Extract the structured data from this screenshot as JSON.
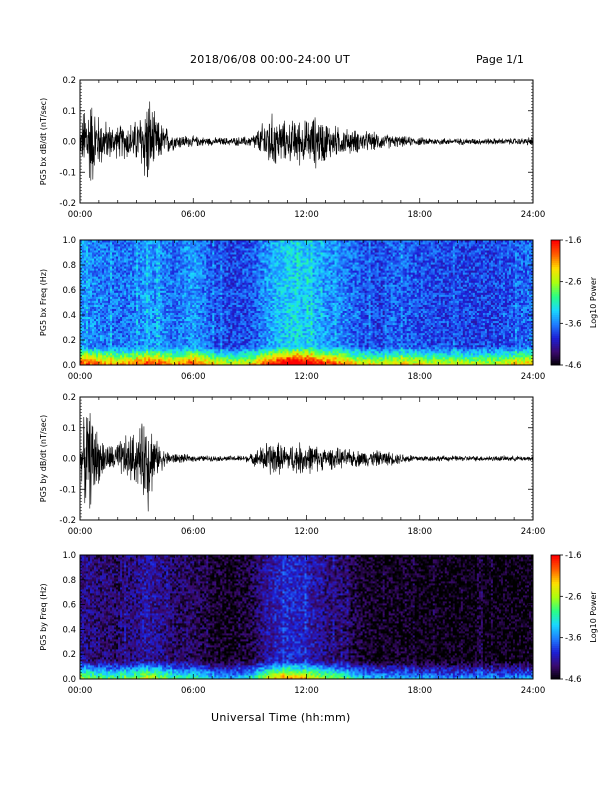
{
  "header": {
    "title": "2018/06/08  00:00-24:00 UT",
    "page": "Page 1/1"
  },
  "footer": {
    "xlabel": "Universal Time (hh:mm)"
  },
  "colors": {
    "trace": "#000000",
    "colormap": [
      "#000000",
      "#3a0a6e",
      "#1d1fd6",
      "#1f7fff",
      "#19d8ff",
      "#2bff84",
      "#aaff10",
      "#ffe000",
      "#ff6000",
      "#ff0000"
    ]
  },
  "chart_data": [
    {
      "type": "line",
      "ylabel": "PG5 bx dB/dt (nT/sec)",
      "xlim": [
        0,
        24
      ],
      "ylim": [
        -0.2,
        0.2
      ],
      "xticks": [
        "00:00",
        "06:00",
        "12:00",
        "18:00",
        "24:00"
      ],
      "yticks": [
        "-0.2",
        "-0.1",
        "0.0",
        "0.1",
        "0.2"
      ],
      "ytick_values": [
        -0.2,
        -0.1,
        0.0,
        0.1,
        0.2
      ],
      "envelope": {
        "hours": [
          0,
          0.3,
          0.6,
          1.0,
          1.5,
          2.0,
          2.5,
          3.0,
          3.3,
          3.6,
          4.0,
          4.5,
          5.0,
          6.0,
          7.0,
          8.0,
          9.0,
          9.5,
          10.0,
          10.5,
          11.0,
          11.5,
          12.0,
          12.5,
          13.0,
          13.5,
          14.0,
          15.0,
          16.0,
          17.0,
          18.0,
          20.0,
          22.0,
          23.5,
          24.0
        ],
        "amplitude": [
          0.03,
          0.18,
          0.17,
          0.1,
          0.07,
          0.06,
          0.07,
          0.08,
          0.13,
          0.19,
          0.09,
          0.06,
          0.03,
          0.02,
          0.015,
          0.015,
          0.02,
          0.05,
          0.11,
          0.09,
          0.07,
          0.09,
          0.08,
          0.1,
          0.08,
          0.06,
          0.05,
          0.04,
          0.03,
          0.02,
          0.015,
          0.012,
          0.012,
          0.012,
          0.02
        ]
      }
    },
    {
      "type": "heatmap",
      "ylabel": "PG5 bx Freq (Hz)",
      "xlim": [
        0,
        24
      ],
      "ylim": [
        0.0,
        1.0
      ],
      "xticks": [
        "00:00",
        "06:00",
        "12:00",
        "18:00",
        "24:00"
      ],
      "yticks": [
        "0.0",
        "0.2",
        "0.4",
        "0.6",
        "0.8",
        "1.0"
      ],
      "ytick_values": [
        0.0,
        0.2,
        0.4,
        0.6,
        0.8,
        1.0
      ],
      "colorbar": {
        "label": "Log10 Power",
        "ticks": [
          "-1.6",
          "-2.6",
          "-3.6",
          "-4.6"
        ],
        "range": [
          -4.6,
          -1.6
        ]
      },
      "background_level": -3.65,
      "activity": {
        "hours": [
          0,
          1,
          2,
          3,
          3.5,
          4,
          5,
          6,
          7,
          8,
          9,
          10,
          11,
          12,
          13,
          14,
          15,
          16,
          17,
          18,
          20,
          22,
          24
        ],
        "level": [
          0.55,
          0.45,
          0.4,
          0.45,
          0.55,
          0.5,
          0.4,
          0.55,
          0.3,
          0.25,
          0.3,
          0.55,
          0.75,
          0.7,
          0.55,
          0.45,
          0.3,
          0.25,
          0.35,
          0.3,
          0.25,
          0.25,
          0.4
        ]
      }
    },
    {
      "type": "line",
      "ylabel": "PG5 by dB/dt (nT/sec)",
      "xlim": [
        0,
        24
      ],
      "ylim": [
        -0.2,
        0.2
      ],
      "xticks": [
        "00:00",
        "06:00",
        "12:00",
        "18:00",
        "24:00"
      ],
      "yticks": [
        "-0.2",
        "-0.1",
        "0.0",
        "0.1",
        "0.2"
      ],
      "ytick_values": [
        -0.2,
        -0.1,
        0.0,
        0.1,
        0.2
      ],
      "envelope": {
        "hours": [
          0,
          0.3,
          0.6,
          1.0,
          1.5,
          2.0,
          2.5,
          3.0,
          3.3,
          3.6,
          4.0,
          4.5,
          5.0,
          6.0,
          7.0,
          8.0,
          9.0,
          9.5,
          10.0,
          10.5,
          11.0,
          11.5,
          12.0,
          12.5,
          13.0,
          13.5,
          14.0,
          15.0,
          16.0,
          17.0,
          18.0,
          20.0,
          22.0,
          23.5,
          24.0
        ],
        "amplitude": [
          0.03,
          0.19,
          0.18,
          0.09,
          0.05,
          0.06,
          0.09,
          0.1,
          0.13,
          0.2,
          0.07,
          0.03,
          0.02,
          0.012,
          0.01,
          0.01,
          0.015,
          0.04,
          0.07,
          0.06,
          0.05,
          0.06,
          0.06,
          0.05,
          0.04,
          0.04,
          0.035,
          0.03,
          0.03,
          0.02,
          0.012,
          0.01,
          0.01,
          0.01,
          0.01
        ]
      }
    },
    {
      "type": "heatmap",
      "ylabel": "PG5 by Freq (Hz)",
      "xlim": [
        0,
        24
      ],
      "ylim": [
        0.0,
        1.0
      ],
      "xticks": [
        "00:00",
        "06:00",
        "12:00",
        "18:00",
        "24:00"
      ],
      "yticks": [
        "0.0",
        "0.2",
        "0.4",
        "0.6",
        "0.8",
        "1.0"
      ],
      "ytick_values": [
        0.0,
        0.2,
        0.4,
        0.6,
        0.8,
        1.0
      ],
      "colorbar": {
        "label": "Log10 Power",
        "ticks": [
          "-1.6",
          "-2.6",
          "-3.6",
          "-4.6"
        ],
        "range": [
          -4.6,
          -1.6
        ]
      },
      "background_level": -4.2,
      "activity": {
        "hours": [
          0,
          1,
          2,
          3,
          3.5,
          4,
          5,
          6,
          7,
          8,
          9,
          10,
          11,
          12,
          13,
          14,
          15,
          16,
          17,
          18,
          20,
          22,
          24
        ],
        "level": [
          0.45,
          0.35,
          0.3,
          0.4,
          0.5,
          0.45,
          0.3,
          0.3,
          0.15,
          0.1,
          0.2,
          0.5,
          0.65,
          0.55,
          0.4,
          0.3,
          0.15,
          0.1,
          0.1,
          0.08,
          0.05,
          0.05,
          0.08
        ]
      }
    }
  ]
}
